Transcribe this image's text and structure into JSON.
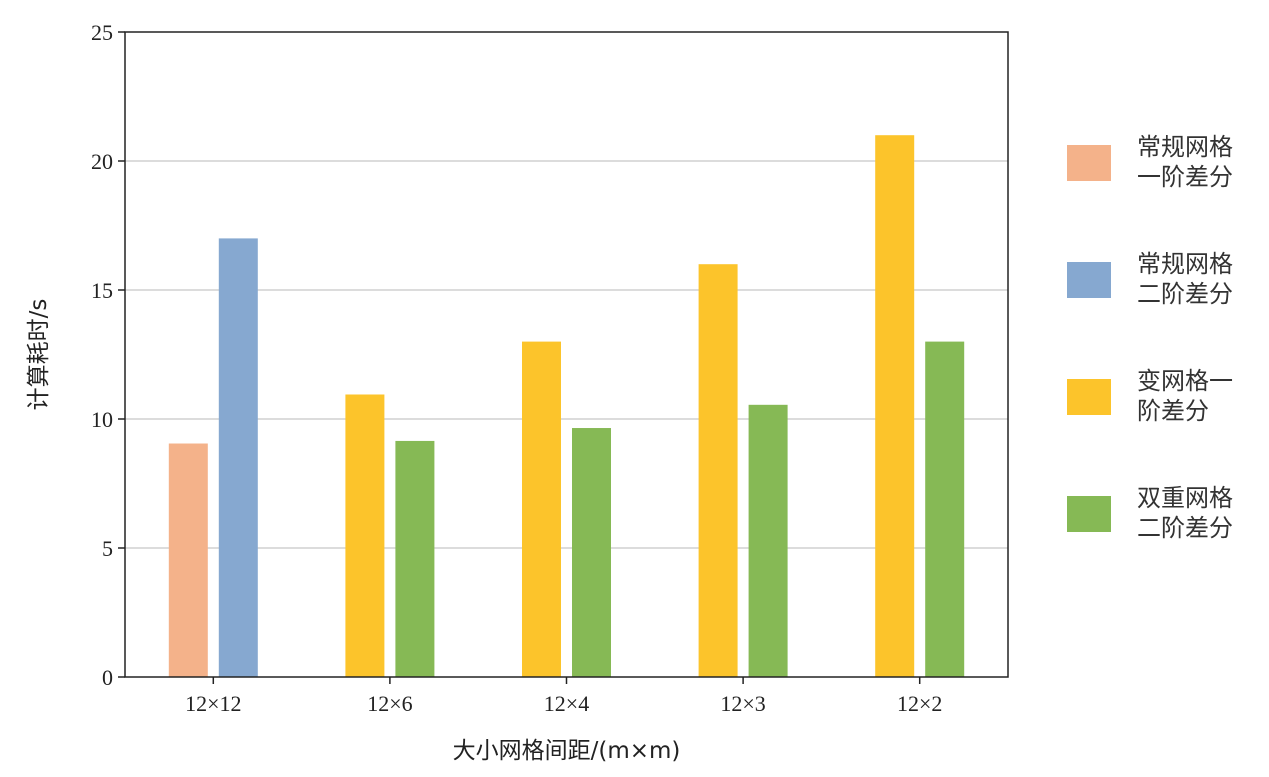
{
  "chart_data": {
    "type": "bar",
    "categories": [
      "12×12",
      "12×6",
      "12×4",
      "12×3",
      "12×2"
    ],
    "series": [
      {
        "name": "常规网格一阶差分",
        "legend_lines": [
          "常规网格",
          "一阶差分"
        ],
        "color": "#F4B28A",
        "values": [
          9.05,
          null,
          null,
          null,
          null
        ]
      },
      {
        "name": "常规网格二阶差分",
        "legend_lines": [
          "常规网格",
          "二阶差分"
        ],
        "color": "#86A8D0",
        "values": [
          17.0,
          null,
          null,
          null,
          null
        ]
      },
      {
        "name": "变网格一阶差分",
        "legend_lines": [
          "变网格一",
          "阶差分"
        ],
        "color": "#FCC42B",
        "values": [
          null,
          10.95,
          13.0,
          16.0,
          21.0
        ]
      },
      {
        "name": "双重网格二阶差分",
        "legend_lines": [
          "双重网格",
          "二阶差分"
        ],
        "color": "#86B955",
        "values": [
          null,
          9.15,
          9.65,
          10.55,
          13.0
        ]
      }
    ],
    "xlabel": "大小网格间距/(m×m)",
    "ylabel": "计算耗时/s",
    "ylim": [
      0,
      25
    ],
    "yticks": [
      "0",
      "5",
      "10",
      "15",
      "20",
      "25"
    ],
    "grid": "horizontal",
    "legend_position": "right"
  }
}
